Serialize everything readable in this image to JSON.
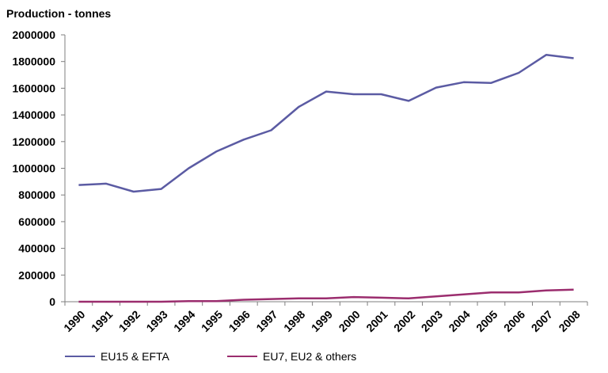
{
  "chart_data": {
    "type": "line",
    "title": "",
    "ylabel": "Production - tonnes",
    "xlabel": "",
    "ylim": [
      0,
      2000000
    ],
    "yticks": [
      "0",
      "200000",
      "400000",
      "600000",
      "800000",
      "1000000",
      "1200000",
      "1400000",
      "1600000",
      "1800000",
      "2000000"
    ],
    "categories": [
      "1990",
      "1991",
      "1992",
      "1993",
      "1994",
      "1995",
      "1996",
      "1997",
      "1998",
      "1999",
      "2000",
      "2001",
      "2002",
      "2003",
      "2004",
      "2005",
      "2006",
      "2007",
      "2008"
    ],
    "grid": false,
    "legend_position": "bottom",
    "series": [
      {
        "name": "EU15 & EFTA",
        "color": "#5b5ba3",
        "values": [
          875000,
          885000,
          825000,
          845000,
          1000000,
          1125000,
          1215000,
          1285000,
          1460000,
          1575000,
          1555000,
          1555000,
          1505000,
          1605000,
          1645000,
          1640000,
          1715000,
          1850000,
          1825000
        ]
      },
      {
        "name": "EU7, EU2 & others",
        "color": "#9b2d6e",
        "values": [
          0,
          0,
          0,
          0,
          5000,
          5000,
          15000,
          20000,
          25000,
          25000,
          35000,
          30000,
          25000,
          40000,
          55000,
          70000,
          70000,
          85000,
          90000
        ]
      }
    ]
  }
}
